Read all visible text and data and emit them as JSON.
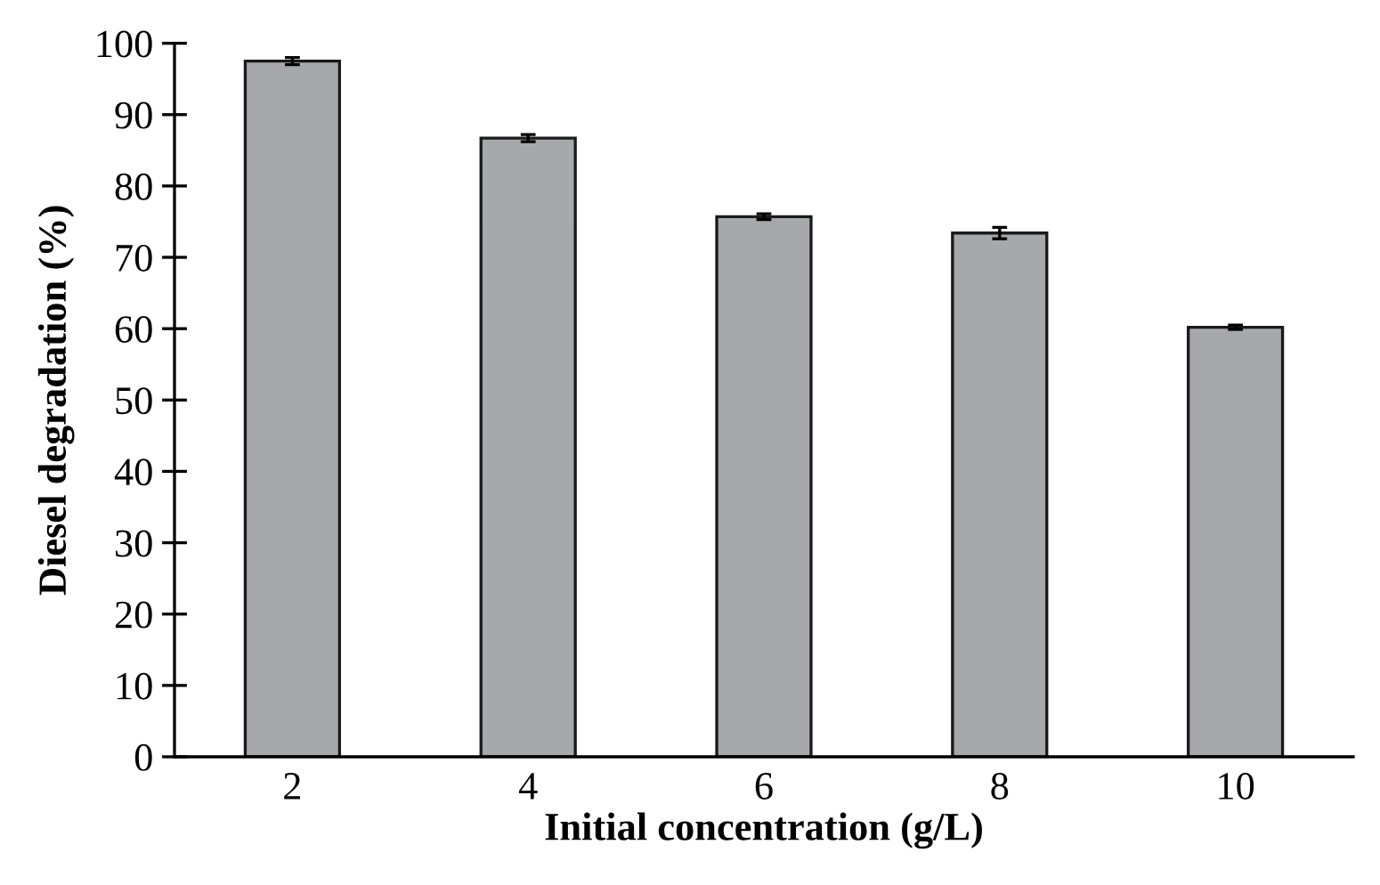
{
  "chart_data": {
    "type": "bar",
    "xlabel": "Initial concentration (g/L)",
    "ylabel": "Diesel degradation (%)",
    "categories": [
      "2",
      "4",
      "6",
      "8",
      "10"
    ],
    "values": [
      97.5,
      86.7,
      75.7,
      73.4,
      60.2
    ],
    "errors": [
      0.5,
      0.5,
      0.4,
      0.8,
      0.3
    ],
    "color": "#a6a8ab",
    "ylim": [
      0,
      100
    ],
    "yticks": [
      0,
      10,
      20,
      30,
      40,
      50,
      60,
      70,
      80,
      90,
      100
    ],
    "grid": false,
    "legend": false
  }
}
